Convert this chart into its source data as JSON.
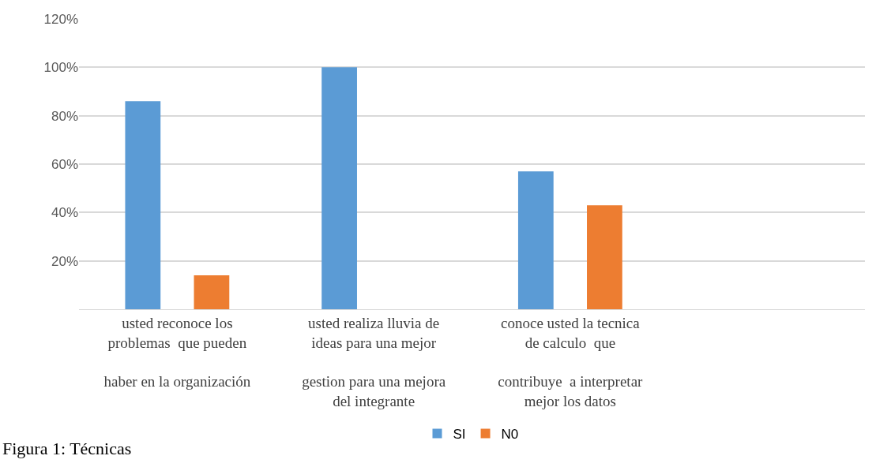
{
  "chart_data": {
    "type": "bar",
    "categories": [
      "usted reconoce los\nproblemas  que pueden\n\nhaber en la organización",
      "usted realiza lluvia de\nideas para una mejor\n\ngestion para una mejora\ndel integrante",
      "conoce usted la tecnica\nde calculo  que\n\ncontribuye  a interpretar\nmejor los datos",
      null
    ],
    "series": [
      {
        "name": "SI",
        "color": "#5b9bd5",
        "values": [
          86,
          100,
          57,
          null
        ]
      },
      {
        "name": "N0",
        "color": "#ed7d31",
        "values": [
          14,
          0,
          43,
          null
        ]
      }
    ],
    "ylim": [
      0,
      120
    ],
    "yticks": [
      {
        "value": 0,
        "label": null
      },
      {
        "value": 20,
        "label": "20%"
      },
      {
        "value": 40,
        "label": "40%"
      },
      {
        "value": 60,
        "label": "60%"
      },
      {
        "value": 80,
        "label": "80%"
      },
      {
        "value": 100,
        "label": "100%"
      },
      {
        "value": 120,
        "label": "120%"
      }
    ],
    "grid": "y",
    "legend": "bottom",
    "annotations": [
      "Figura 1: Técnicas"
    ]
  }
}
